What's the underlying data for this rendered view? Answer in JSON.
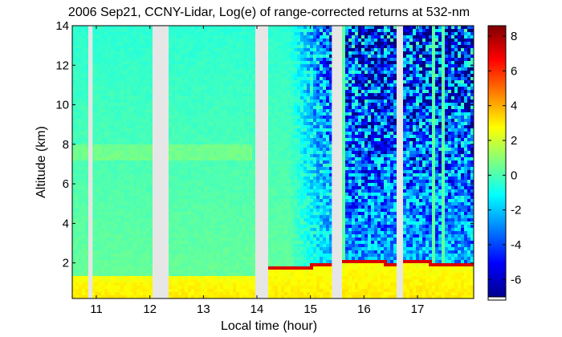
{
  "chart_data": {
    "type": "heatmap",
    "title": "2006 Sep21, CCNY-Lidar, Log(e) of range-corrected returns at 532-nm",
    "xlabel": "Local time (hour)",
    "ylabel": "Altitude (km)",
    "xlim": [
      10.55,
      18.05
    ],
    "ylim": [
      0.2,
      14
    ],
    "x_ticks": [
      11,
      12,
      13,
      14,
      15,
      16,
      17
    ],
    "y_ticks": [
      2,
      4,
      6,
      8,
      10,
      12,
      14
    ],
    "colorbar": {
      "range": [
        -7,
        8.6
      ],
      "ticks": [
        8,
        6,
        4,
        2,
        0,
        -2,
        -4,
        -6
      ],
      "colormap": "jet"
    },
    "data_gaps_hours": [
      [
        10.87,
        10.93
      ],
      [
        12.05,
        12.32
      ],
      [
        14.0,
        14.2
      ],
      [
        15.4,
        15.57
      ],
      [
        16.61,
        16.71
      ]
    ],
    "boundary_layer_top_km": [
      {
        "x": 14.0,
        "y": 1.8
      },
      {
        "x": 14.5,
        "y": 1.85
      },
      {
        "x": 15.0,
        "y": 1.9
      },
      {
        "x": 15.6,
        "y": 2.1
      },
      {
        "x": 16.0,
        "y": 2.2
      },
      {
        "x": 16.5,
        "y": 2.05
      },
      {
        "x": 17.0,
        "y": 2.15
      },
      {
        "x": 17.5,
        "y": 2.0
      },
      {
        "x": 18.0,
        "y": 1.95
      }
    ],
    "aerosol_layer_km": [
      7.2,
      8.0
    ]
  }
}
